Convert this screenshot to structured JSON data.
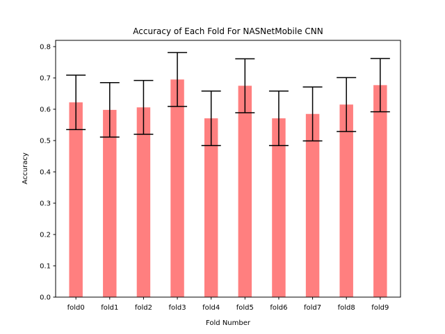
{
  "chart_data": {
    "type": "bar",
    "title": "Accuracy of Each Fold For NASNetMobile CNN",
    "xlabel": "Fold Number",
    "ylabel": "Accuracy",
    "categories": [
      "fold0",
      "fold1",
      "fold2",
      "fold3",
      "fold4",
      "fold5",
      "fold6",
      "fold7",
      "fold8",
      "fold9"
    ],
    "values": [
      0.622,
      0.598,
      0.606,
      0.695,
      0.571,
      0.675,
      0.571,
      0.585,
      0.615,
      0.677
    ],
    "error": [
      0.087,
      0.087,
      0.086,
      0.086,
      0.087,
      0.086,
      0.087,
      0.086,
      0.086,
      0.085
    ],
    "ylim": [
      0,
      0.82
    ],
    "yticks": [
      "0.0",
      "0.1",
      "0.2",
      "0.3",
      "0.4",
      "0.5",
      "0.6",
      "0.7",
      "0.8"
    ],
    "ytick_values": [
      0,
      0.1,
      0.2,
      0.3,
      0.4,
      0.5,
      0.6,
      0.7,
      0.8
    ],
    "bar_color": "#ff7f7f",
    "error_color": "#000000",
    "grid": false,
    "legend": "none"
  }
}
